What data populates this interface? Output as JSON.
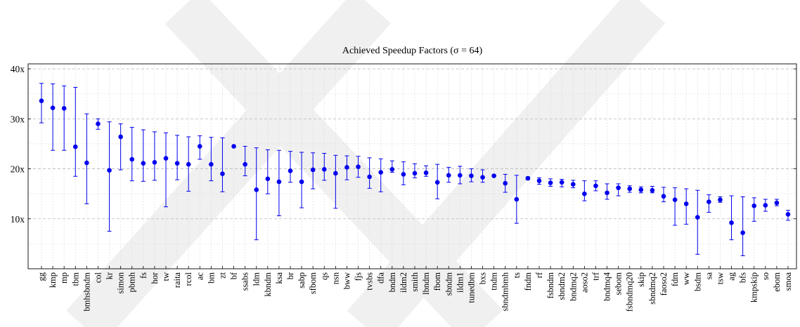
{
  "chart_data": {
    "type": "scatter",
    "title": "Achieved Speedup Factors (σ = 64)",
    "xlabel": "",
    "ylabel": "",
    "ylim": [
      0,
      41
    ],
    "y_ticks": [
      10,
      20,
      30,
      40
    ],
    "y_tick_labels": [
      "10x",
      "20x",
      "30x",
      "40x"
    ],
    "grid": true,
    "marker_color": "#0000ee",
    "error_bars": true,
    "categories": [
      "gg",
      "kmp",
      "mp",
      "tbm",
      "bmhsbndm",
      "col",
      "kr",
      "simon",
      "pbmh",
      "fs",
      "hor",
      "tw",
      "raita",
      "rcol",
      "ac",
      "bm",
      "zt",
      "bf",
      "ssabs",
      "ldm",
      "kbndm",
      "ksa",
      "br",
      "sabp",
      "sfbom",
      "qs",
      "nsn",
      "bww",
      "fjs",
      "tvsbs",
      "dfa",
      "bndm",
      "ildm2",
      "smith",
      "lbndm",
      "fbom",
      "sbndm",
      "ildm1",
      "tunedbm",
      "bxs",
      "tndm",
      "sbndmbmh",
      "ts",
      "fndm",
      "rf",
      "fsbndm",
      "sbndm2",
      "bndmq2",
      "aoso2",
      "trf",
      "bndmq4",
      "sebom",
      "fsbndmq20",
      "skip",
      "sbndmq2",
      "faoso2",
      "fdm",
      "ww",
      "bsdm",
      "sa",
      "tsw",
      "ag",
      "bfs",
      "kmpskip",
      "so",
      "ebom",
      "smoa"
    ],
    "values": [
      33.6,
      32.2,
      32.1,
      24.4,
      21.2,
      29.0,
      19.7,
      26.4,
      21.9,
      21.1,
      21.3,
      22.1,
      21.1,
      20.9,
      24.5,
      20.9,
      19.0,
      24.5,
      20.9,
      15.8,
      18.0,
      17.4,
      19.6,
      17.4,
      19.8,
      19.9,
      19.1,
      20.3,
      20.4,
      18.4,
      19.3,
      19.9,
      18.9,
      19.1,
      19.2,
      17.3,
      18.7,
      18.7,
      18.6,
      18.3,
      18.6,
      17.1,
      13.9,
      18.1,
      17.6,
      17.2,
      17.3,
      16.9,
      15.0,
      16.6,
      15.2,
      16.2,
      16.0,
      15.8,
      15.7,
      14.5,
      13.8,
      13.0,
      10.3,
      13.4,
      13.8,
      9.2,
      7.2,
      12.6,
      12.7,
      13.2,
      10.9
    ],
    "lower": [
      29.2,
      23.7,
      23.7,
      18.5,
      13.0,
      27.9,
      7.5,
      19.8,
      17.6,
      17.5,
      17.7,
      12.4,
      17.8,
      15.5,
      21.9,
      17.6,
      15.4,
      24.5,
      18.6,
      5.8,
      15.0,
      10.6,
      17.3,
      12.2,
      16.0,
      17.7,
      12.1,
      17.8,
      18.3,
      16.1,
      15.4,
      19.3,
      16.8,
      18.2,
      18.5,
      14.0,
      17.3,
      17.0,
      17.4,
      17.3,
      18.4,
      15.3,
      9.1,
      17.8,
      16.9,
      16.5,
      16.4,
      16.2,
      13.6,
      15.6,
      13.9,
      14.6,
      15.3,
      15.2,
      15.2,
      13.4,
      8.7,
      8.9,
      2.9,
      11.3,
      13.3,
      5.8,
      2.6,
      9.5,
      11.5,
      12.6,
      9.7
    ],
    "upper": [
      37.1,
      37.0,
      36.6,
      36.3,
      31.0,
      30.0,
      29.4,
      29.0,
      28.3,
      27.8,
      27.4,
      27.2,
      26.7,
      26.4,
      26.6,
      26.3,
      26.2,
      24.5,
      24.5,
      24.2,
      23.8,
      23.7,
      23.5,
      23.3,
      23.2,
      23.1,
      22.7,
      22.6,
      22.5,
      22.2,
      22.0,
      21.6,
      21.4,
      21.0,
      20.6,
      20.9,
      20.3,
      20.5,
      20.0,
      19.8,
      18.8,
      18.9,
      18.7,
      18.4,
      18.2,
      18.0,
      17.9,
      17.7,
      17.6,
      17.6,
      17.0,
      17.0,
      16.6,
      16.4,
      16.5,
      16.3,
      16.2,
      16.0,
      15.7,
      14.8,
      14.4,
      14.6,
      14.4,
      14.2,
      13.9,
      13.9,
      11.7
    ]
  }
}
